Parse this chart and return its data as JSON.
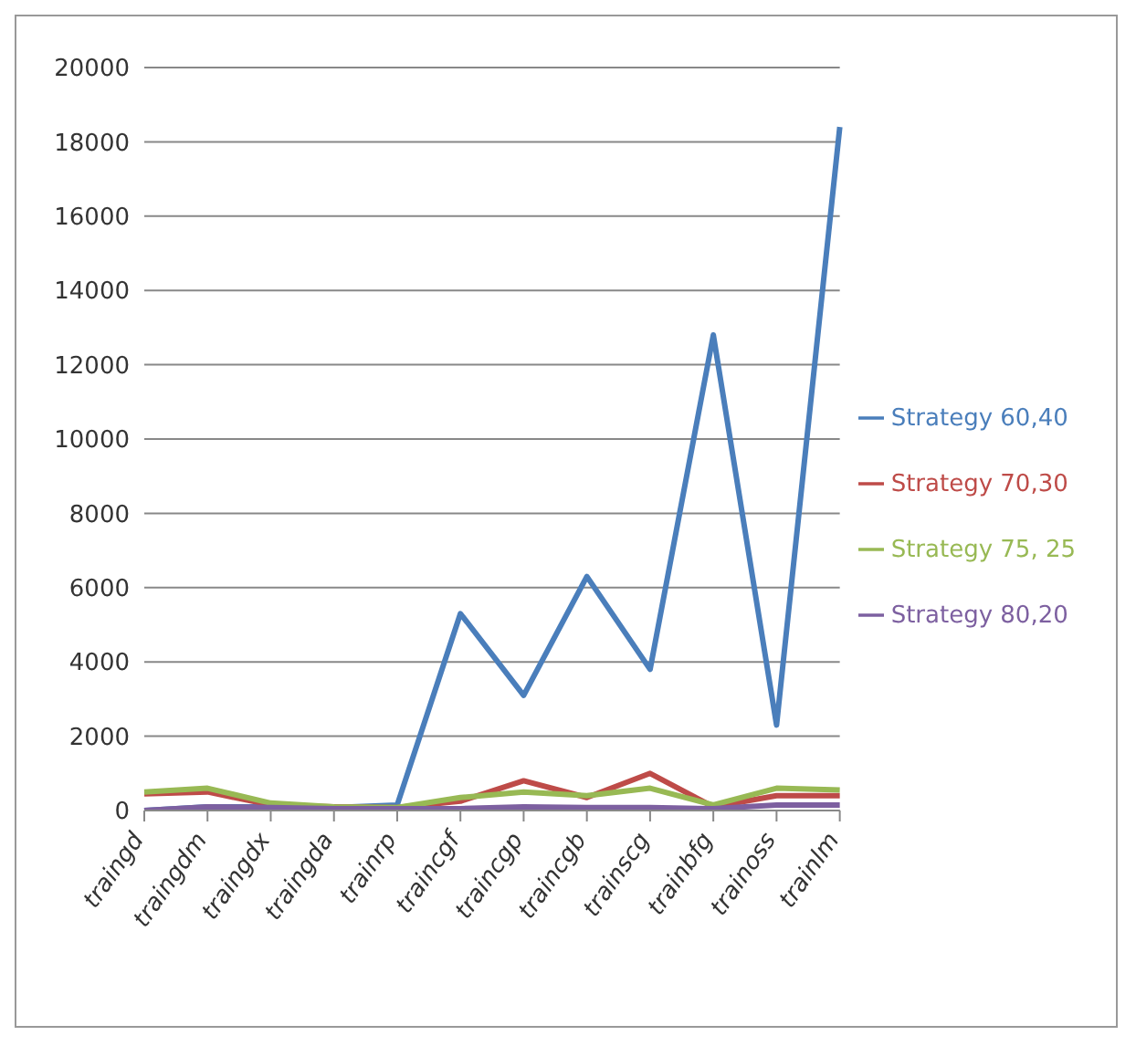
{
  "chart_data": {
    "type": "line",
    "categories": [
      "traingd",
      "traingdm",
      "traingdx",
      "traingda",
      "trainrp",
      "traincgf",
      "traincgp",
      "traincgb",
      "trainscg",
      "trainbfg",
      "trainoss",
      "trainlm"
    ],
    "series": [
      {
        "name": "Strategy 60,40",
        "color": "#4a7ebb",
        "values": [
          0,
          100,
          100,
          80,
          150,
          5300,
          3100,
          6300,
          3800,
          12800,
          2300,
          18400
        ]
      },
      {
        "name": "Strategy 70,30",
        "color": "#be4b48",
        "values": [
          450,
          500,
          150,
          100,
          80,
          250,
          800,
          350,
          1000,
          100,
          400,
          400
        ]
      },
      {
        "name": "Strategy 75, 25",
        "color": "#98b954",
        "values": [
          500,
          600,
          200,
          100,
          80,
          350,
          500,
          400,
          600,
          150,
          600,
          550
        ]
      },
      {
        "name": "Strategy 80,20",
        "color": "#7d60a0",
        "values": [
          0,
          100,
          80,
          50,
          50,
          50,
          100,
          80,
          80,
          50,
          150,
          150
        ]
      }
    ],
    "ylim": [
      0,
      20000
    ],
    "yticks": [
      0,
      2000,
      4000,
      6000,
      8000,
      10000,
      12000,
      14000,
      16000,
      18000,
      20000
    ],
    "grid": "y",
    "legend": "right",
    "marker": "none",
    "line_style": "solid"
  }
}
